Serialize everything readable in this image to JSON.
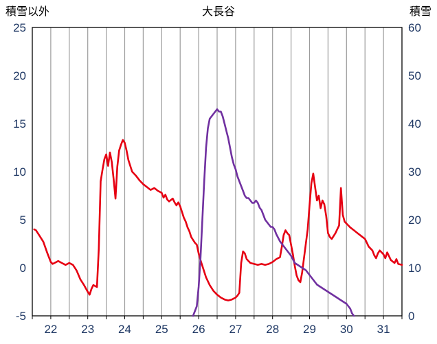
{
  "header": {
    "left_axis_title": "積雪以外",
    "title": "大長谷",
    "right_axis_title": "積雪"
  },
  "chart_data": {
    "type": "line",
    "title": "大長谷",
    "x_range": [
      21.5,
      31.5
    ],
    "x_ticks": [
      22,
      23,
      24,
      25,
      26,
      27,
      28,
      29,
      30,
      31
    ],
    "x_gridline_step": 0.5,
    "grid": "vertical-only",
    "legend": "none",
    "left_axis": {
      "title": "積雪以外",
      "ylim": [
        -5,
        25
      ],
      "ticks": [
        -5,
        0,
        5,
        10,
        15,
        20,
        25
      ]
    },
    "right_axis": {
      "title": "積雪",
      "ylim": [
        0,
        60
      ],
      "ticks": [
        0,
        10,
        20,
        30,
        40,
        50,
        60
      ]
    },
    "colors": {
      "gridline": "#9b9b9b",
      "border": "#000000",
      "tick_label": "#1f3864",
      "title": "#000000",
      "temperature": "#e60012",
      "snow": "#7030a0"
    },
    "series": [
      {
        "name": "積雪以外",
        "axis": "left",
        "color": "#e60012",
        "points": [
          [
            21.55,
            4.0
          ],
          [
            21.6,
            3.9
          ],
          [
            21.7,
            3.3
          ],
          [
            21.8,
            2.7
          ],
          [
            21.9,
            1.6
          ],
          [
            22.0,
            0.6
          ],
          [
            22.05,
            0.4
          ],
          [
            22.1,
            0.5
          ],
          [
            22.2,
            0.7
          ],
          [
            22.3,
            0.5
          ],
          [
            22.4,
            0.3
          ],
          [
            22.5,
            0.5
          ],
          [
            22.6,
            0.3
          ],
          [
            22.7,
            -0.3
          ],
          [
            22.8,
            -1.2
          ],
          [
            22.9,
            -1.8
          ],
          [
            23.0,
            -2.5
          ],
          [
            23.05,
            -2.8
          ],
          [
            23.1,
            -2.2
          ],
          [
            23.15,
            -1.8
          ],
          [
            23.25,
            -2.0
          ],
          [
            23.3,
            2.0
          ],
          [
            23.35,
            9.0
          ],
          [
            23.4,
            10.2
          ],
          [
            23.45,
            11.3
          ],
          [
            23.5,
            11.8
          ],
          [
            23.55,
            10.6
          ],
          [
            23.6,
            12.0
          ],
          [
            23.65,
            11.0
          ],
          [
            23.7,
            9.2
          ],
          [
            23.75,
            7.2
          ],
          [
            23.8,
            10.5
          ],
          [
            23.85,
            12.2
          ],
          [
            23.9,
            12.8
          ],
          [
            23.95,
            13.3
          ],
          [
            24.0,
            13.0
          ],
          [
            24.05,
            12.2
          ],
          [
            24.1,
            11.2
          ],
          [
            24.15,
            10.6
          ],
          [
            24.2,
            10.0
          ],
          [
            24.3,
            9.6
          ],
          [
            24.4,
            9.1
          ],
          [
            24.5,
            8.7
          ],
          [
            24.6,
            8.4
          ],
          [
            24.7,
            8.1
          ],
          [
            24.8,
            8.3
          ],
          [
            24.9,
            8.0
          ],
          [
            25.0,
            7.8
          ],
          [
            25.05,
            7.3
          ],
          [
            25.1,
            7.6
          ],
          [
            25.15,
            7.1
          ],
          [
            25.2,
            6.9
          ],
          [
            25.3,
            7.2
          ],
          [
            25.35,
            6.8
          ],
          [
            25.4,
            6.5
          ],
          [
            25.45,
            6.8
          ],
          [
            25.5,
            6.4
          ],
          [
            25.55,
            5.8
          ],
          [
            25.6,
            5.2
          ],
          [
            25.65,
            4.8
          ],
          [
            25.7,
            4.2
          ],
          [
            25.75,
            3.8
          ],
          [
            25.8,
            3.2
          ],
          [
            25.85,
            2.9
          ],
          [
            25.9,
            2.6
          ],
          [
            25.95,
            2.4
          ],
          [
            26.0,
            1.5
          ],
          [
            26.05,
            0.8
          ],
          [
            26.1,
            0.2
          ],
          [
            26.15,
            -0.4
          ],
          [
            26.2,
            -1.0
          ],
          [
            26.3,
            -1.8
          ],
          [
            26.4,
            -2.4
          ],
          [
            26.5,
            -2.8
          ],
          [
            26.6,
            -3.1
          ],
          [
            26.7,
            -3.3
          ],
          [
            26.8,
            -3.4
          ],
          [
            26.9,
            -3.3
          ],
          [
            27.0,
            -3.1
          ],
          [
            27.05,
            -2.9
          ],
          [
            27.1,
            -2.6
          ],
          [
            27.15,
            0.5
          ],
          [
            27.2,
            1.7
          ],
          [
            27.25,
            1.5
          ],
          [
            27.3,
            0.9
          ],
          [
            27.4,
            0.5
          ],
          [
            27.5,
            0.4
          ],
          [
            27.6,
            0.3
          ],
          [
            27.7,
            0.4
          ],
          [
            27.8,
            0.3
          ],
          [
            27.9,
            0.4
          ],
          [
            28.0,
            0.6
          ],
          [
            28.1,
            0.9
          ],
          [
            28.2,
            1.1
          ],
          [
            28.25,
            2.2
          ],
          [
            28.3,
            3.4
          ],
          [
            28.35,
            3.9
          ],
          [
            28.4,
            3.6
          ],
          [
            28.45,
            3.4
          ],
          [
            28.5,
            2.4
          ],
          [
            28.55,
            1.4
          ],
          [
            28.6,
            0.2
          ],
          [
            28.65,
            -0.8
          ],
          [
            28.7,
            -1.3
          ],
          [
            28.75,
            -1.5
          ],
          [
            28.8,
            -0.5
          ],
          [
            28.85,
            1.0
          ],
          [
            28.9,
            2.5
          ],
          [
            28.95,
            4.0
          ],
          [
            29.0,
            6.5
          ],
          [
            29.05,
            8.8
          ],
          [
            29.1,
            9.8
          ],
          [
            29.15,
            8.4
          ],
          [
            29.2,
            7.0
          ],
          [
            29.25,
            7.5
          ],
          [
            29.3,
            6.2
          ],
          [
            29.35,
            7.0
          ],
          [
            29.4,
            6.6
          ],
          [
            29.45,
            5.4
          ],
          [
            29.5,
            3.6
          ],
          [
            29.55,
            3.2
          ],
          [
            29.6,
            3.0
          ],
          [
            29.65,
            3.3
          ],
          [
            29.7,
            3.6
          ],
          [
            29.75,
            4.0
          ],
          [
            29.8,
            4.4
          ],
          [
            29.85,
            8.3
          ],
          [
            29.9,
            5.5
          ],
          [
            29.95,
            4.8
          ],
          [
            30.0,
            4.6
          ],
          [
            30.1,
            4.2
          ],
          [
            30.2,
            3.9
          ],
          [
            30.3,
            3.6
          ],
          [
            30.4,
            3.3
          ],
          [
            30.5,
            3.0
          ],
          [
            30.55,
            2.6
          ],
          [
            30.6,
            2.2
          ],
          [
            30.7,
            1.8
          ],
          [
            30.75,
            1.3
          ],
          [
            30.8,
            1.0
          ],
          [
            30.85,
            1.5
          ],
          [
            30.9,
            1.8
          ],
          [
            31.0,
            1.4
          ],
          [
            31.05,
            1.0
          ],
          [
            31.1,
            1.6
          ],
          [
            31.15,
            1.2
          ],
          [
            31.2,
            0.8
          ],
          [
            31.3,
            0.5
          ],
          [
            31.35,
            0.9
          ],
          [
            31.4,
            0.4
          ],
          [
            31.5,
            0.3
          ]
        ]
      },
      {
        "name": "積雪",
        "axis": "right",
        "color": "#7030a0",
        "points": [
          [
            25.85,
            0
          ],
          [
            25.95,
            2
          ],
          [
            26.0,
            6
          ],
          [
            26.05,
            12
          ],
          [
            26.1,
            20
          ],
          [
            26.15,
            28
          ],
          [
            26.2,
            35
          ],
          [
            26.25,
            39
          ],
          [
            26.3,
            41
          ],
          [
            26.35,
            41.5
          ],
          [
            26.4,
            42
          ],
          [
            26.45,
            42.5
          ],
          [
            26.5,
            43
          ],
          [
            26.55,
            42.5
          ],
          [
            26.6,
            42.5
          ],
          [
            26.65,
            41.5
          ],
          [
            26.7,
            40
          ],
          [
            26.75,
            38.5
          ],
          [
            26.8,
            37
          ],
          [
            26.85,
            35
          ],
          [
            26.9,
            33
          ],
          [
            26.95,
            31.5
          ],
          [
            27.0,
            30.5
          ],
          [
            27.05,
            29
          ],
          [
            27.1,
            28
          ],
          [
            27.15,
            27
          ],
          [
            27.2,
            26
          ],
          [
            27.25,
            25
          ],
          [
            27.3,
            24.5
          ],
          [
            27.35,
            24.5
          ],
          [
            27.4,
            24
          ],
          [
            27.45,
            23.5
          ],
          [
            27.5,
            23.5
          ],
          [
            27.55,
            24
          ],
          [
            27.6,
            23.5
          ],
          [
            27.65,
            22.5
          ],
          [
            27.7,
            22
          ],
          [
            27.75,
            21
          ],
          [
            27.8,
            20
          ],
          [
            27.85,
            19.5
          ],
          [
            27.9,
            19
          ],
          [
            27.95,
            18.5
          ],
          [
            28.0,
            18.5
          ],
          [
            28.05,
            18
          ],
          [
            28.1,
            17
          ],
          [
            28.2,
            15.5
          ],
          [
            28.3,
            14.5
          ],
          [
            28.4,
            13.5
          ],
          [
            28.5,
            12.5
          ],
          [
            28.6,
            11
          ],
          [
            28.7,
            10.5
          ],
          [
            28.8,
            10
          ],
          [
            28.9,
            9.5
          ],
          [
            29.0,
            8.5
          ],
          [
            29.1,
            7.5
          ],
          [
            29.2,
            6.5
          ],
          [
            29.3,
            6
          ],
          [
            29.4,
            5.5
          ],
          [
            29.5,
            5
          ],
          [
            29.6,
            4.5
          ],
          [
            29.7,
            4
          ],
          [
            29.8,
            3.5
          ],
          [
            29.9,
            3
          ],
          [
            30.0,
            2.5
          ],
          [
            30.05,
            2
          ],
          [
            30.1,
            1.5
          ],
          [
            30.15,
            0.5
          ],
          [
            30.2,
            0
          ]
        ]
      }
    ]
  }
}
